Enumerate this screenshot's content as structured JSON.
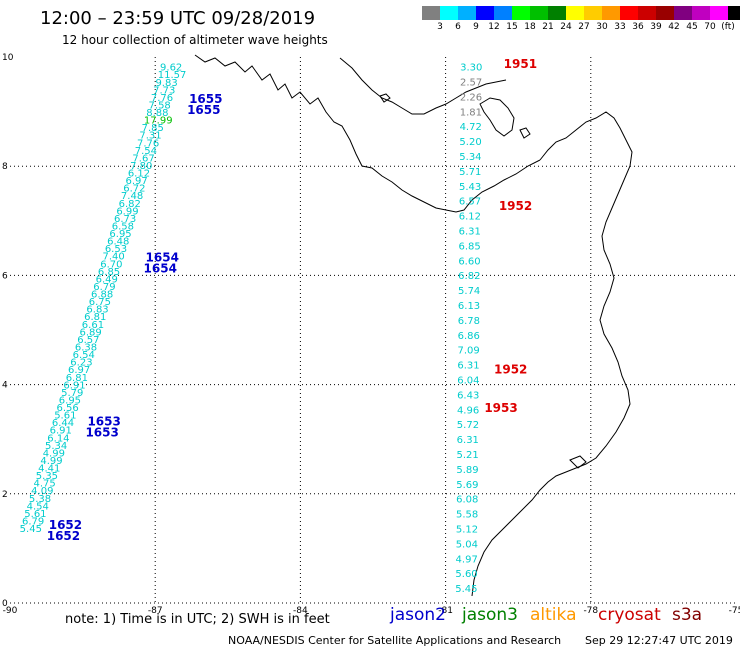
{
  "header": {
    "title": "12:00 – 23:59 UTC 09/28/2019",
    "subtitle": "12 hour collection of altimeter wave heights"
  },
  "color_scale": {
    "unit": "(ft)",
    "colors": [
      "#808080",
      "#00ffff",
      "#00b0ff",
      "#0000ff",
      "#0080ff",
      "#00ff00",
      "#00c000",
      "#008000",
      "#ffff00",
      "#ffcc00",
      "#ff9900",
      "#ff0000",
      "#cc0000",
      "#990000",
      "#800080",
      "#c000c0",
      "#ff00ff",
      "#000000"
    ],
    "labels": [
      "3",
      "6",
      "9",
      "12",
      "15",
      "18",
      "21",
      "24",
      "27",
      "30",
      "33",
      "36",
      "39",
      "42",
      "45",
      "70"
    ]
  },
  "axes": {
    "x_ticks": [
      "-90",
      "-87",
      "-84",
      "-81",
      "-78",
      "-75"
    ],
    "y_ticks": [
      "10",
      "8",
      "6",
      "4",
      "2",
      "0"
    ]
  },
  "tracks": [
    {
      "name": "west-track",
      "times": [
        {
          "label": "1655",
          "lon": -86.3,
          "lat": 9.1
        },
        {
          "label": "1654",
          "lon": -87.2,
          "lat": 6.2
        },
        {
          "label": "1653",
          "lon": -88.4,
          "lat": 3.2
        },
        {
          "label": "1652",
          "lon": -89.2,
          "lat": 1.3
        }
      ],
      "values": [
        "9.62",
        "11.57",
        "9.83",
        "7.73",
        "7.76",
        "7.58",
        "8.88",
        "17.99",
        "7.85",
        "7.31",
        "7.76",
        "7.54",
        "7.67",
        "7.80",
        "6.12",
        "6.97",
        "6.72",
        "7.48",
        "6.82",
        "6.99",
        "6.73",
        "6.58",
        "6.95",
        "6.48",
        "6.53",
        "7.40",
        "6.70",
        "6.85",
        "6.49",
        "6.79",
        "6.88",
        "6.75",
        "6.83",
        "6.81",
        "6.61",
        "6.89",
        "6.57",
        "6.38",
        "6.54",
        "6.23",
        "6.97",
        "6.81",
        "6.91",
        "5.79",
        "6.95",
        "6.56",
        "5.61",
        "6.44",
        "6.91",
        "6.14",
        "5.34",
        "4.99",
        "4.99",
        "4.41",
        "5.35",
        "4.75",
        "4.09",
        "5.38",
        "4.54",
        "5.61",
        "6.79",
        "5.45"
      ]
    },
    {
      "name": "east-track",
      "times": [
        {
          "label": "1951",
          "lon": -79.8,
          "lat": 9.8
        },
        {
          "label": "1952",
          "lon": -79.9,
          "lat": 7.2
        },
        {
          "label": "1952",
          "lon": -80.0,
          "lat": 4.2
        },
        {
          "label": "1953",
          "lon": -80.2,
          "lat": 3.5
        }
      ],
      "values": [
        "3.30",
        "2.57",
        "2.26",
        "1.81",
        "4.72",
        "5.20",
        "5.34",
        "5.71",
        "5.43",
        "6.57",
        "6.12",
        "6.31",
        "6.85",
        "6.60",
        "6.82",
        "5.74",
        "6.13",
        "6.78",
        "6.86",
        "7.09",
        "6.31",
        "6.04",
        "6.43",
        "4.96",
        "5.72",
        "6.31",
        "5.21",
        "5.89",
        "5.69",
        "6.08",
        "5.58",
        "5.12",
        "5.04",
        "4.97",
        "5.60",
        "5.45"
      ]
    }
  ],
  "note": "note:  1) Time is in UTC;  2) SWH is in feet",
  "legend": [
    {
      "name": "jason2",
      "color": "#0000cc"
    },
    {
      "name": "jason3",
      "color": "#008000"
    },
    {
      "name": "altika",
      "color": "#ff9900"
    },
    {
      "name": "cryosat",
      "color": "#cc0000"
    },
    {
      "name": "s3a",
      "color": "#800000"
    }
  ],
  "credit": "NOAA/NESDIS Center for Satellite Applications and Research",
  "generated": "Sep 29 12:27:47 UTC 2019"
}
